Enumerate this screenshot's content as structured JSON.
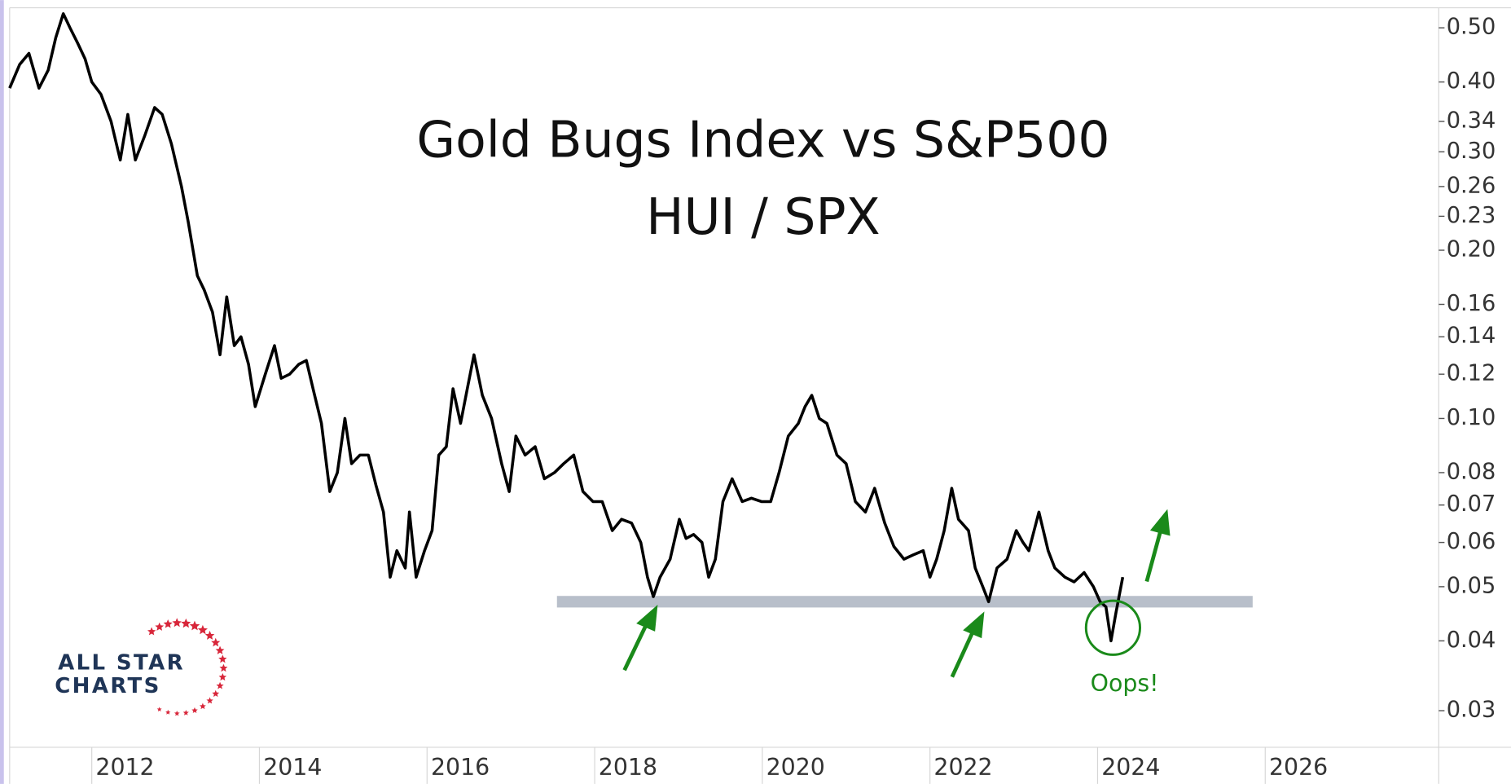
{
  "chart_data": {
    "type": "line",
    "title": "Gold Bugs Index vs S&P500",
    "subtitle": "HUI / SPX",
    "annotation": "Oops!",
    "logo": [
      "ALL STAR",
      "CHARTS"
    ],
    "log_y": true,
    "color": "#000000",
    "x": [
      2011.02,
      2011.14,
      2011.25,
      2011.37,
      2011.48,
      2011.57,
      2011.66,
      2011.74,
      2011.83,
      2011.92,
      2012.0,
      2012.11,
      2012.23,
      2012.34,
      2012.43,
      2012.52,
      2012.63,
      2012.75,
      2012.84,
      2012.95,
      2013.07,
      2013.15,
      2013.26,
      2013.34,
      2013.44,
      2013.53,
      2013.61,
      2013.7,
      2013.78,
      2013.87,
      2013.95,
      2014.07,
      2014.18,
      2014.26,
      2014.36,
      2014.47,
      2014.56,
      2014.64,
      2014.74,
      2014.84,
      2014.93,
      2015.02,
      2015.1,
      2015.2,
      2015.3,
      2015.39,
      2015.48,
      2015.56,
      2015.64,
      2015.74,
      2015.79,
      2015.87,
      2015.97,
      2016.06,
      2016.14,
      2016.23,
      2016.31,
      2016.4,
      2016.48,
      2016.56,
      2016.66,
      2016.77,
      2016.89,
      2016.98,
      2017.06,
      2017.17,
      2017.29,
      2017.4,
      2017.52,
      2017.63,
      2017.75,
      2017.86,
      2017.98,
      2018.09,
      2018.21,
      2018.32,
      2018.44,
      2018.55,
      2018.63,
      2018.7,
      2018.78,
      2018.9,
      2019.01,
      2019.09,
      2019.18,
      2019.28,
      2019.36,
      2019.44,
      2019.53,
      2019.64,
      2019.76,
      2019.87,
      2019.99,
      2020.1,
      2020.2,
      2020.31,
      2020.43,
      2020.51,
      2020.59,
      2020.68,
      2020.77,
      2020.89,
      2021.0,
      2021.11,
      2021.23,
      2021.34,
      2021.46,
      2021.57,
      2021.69,
      2021.8,
      2021.92,
      2022.0,
      2022.08,
      2022.17,
      2022.26,
      2022.34,
      2022.46,
      2022.54,
      2022.63,
      2022.7,
      2022.8,
      2022.92,
      2023.03,
      2023.11,
      2023.18,
      2023.3,
      2023.41,
      2023.49,
      2023.61,
      2023.72,
      2023.84,
      2023.95,
      2024.03,
      2024.1,
      2024.16,
      2024.22,
      2024.3
    ],
    "values": [
      0.39,
      0.43,
      0.45,
      0.39,
      0.42,
      0.48,
      0.53,
      0.5,
      0.47,
      0.44,
      0.4,
      0.38,
      0.34,
      0.29,
      0.35,
      0.29,
      0.32,
      0.36,
      0.35,
      0.31,
      0.26,
      0.225,
      0.18,
      0.17,
      0.155,
      0.13,
      0.165,
      0.135,
      0.14,
      0.125,
      0.105,
      0.12,
      0.135,
      0.118,
      0.12,
      0.125,
      0.127,
      0.113,
      0.098,
      0.074,
      0.08,
      0.1,
      0.083,
      0.086,
      0.086,
      0.076,
      0.068,
      0.052,
      0.058,
      0.054,
      0.068,
      0.052,
      0.058,
      0.063,
      0.086,
      0.089,
      0.113,
      0.098,
      0.113,
      0.13,
      0.11,
      0.1,
      0.083,
      0.074,
      0.093,
      0.086,
      0.089,
      0.078,
      0.08,
      0.083,
      0.086,
      0.074,
      0.071,
      0.071,
      0.063,
      0.066,
      0.065,
      0.06,
      0.052,
      0.048,
      0.052,
      0.056,
      0.066,
      0.061,
      0.062,
      0.06,
      0.052,
      0.056,
      0.071,
      0.078,
      0.071,
      0.072,
      0.071,
      0.071,
      0.08,
      0.093,
      0.098,
      0.105,
      0.11,
      0.1,
      0.098,
      0.086,
      0.083,
      0.071,
      0.068,
      0.075,
      0.065,
      0.059,
      0.056,
      0.057,
      0.058,
      0.052,
      0.056,
      0.063,
      0.075,
      0.066,
      0.063,
      0.054,
      0.05,
      0.047,
      0.054,
      0.056,
      0.063,
      0.06,
      0.058,
      0.068,
      0.058,
      0.054,
      0.052,
      0.051,
      0.053,
      0.05,
      0.047,
      0.046,
      0.04,
      0.045,
      0.052
    ],
    "band": {
      "value": 0.047,
      "x": [
        2017.55,
        2025.85
      ],
      "color": "#b8bfca"
    },
    "xlim": [
      2011.02,
      2028.07
    ],
    "xticks": [
      2012,
      2014,
      2016,
      2018,
      2020,
      2022,
      2024,
      2026
    ],
    "ylim": [
      0.0258,
      0.543
    ],
    "yticks": [
      0.03,
      0.04,
      0.05,
      0.06,
      0.07,
      0.08,
      {
        "value": 0.1,
        "label": "0.10"
      },
      0.12,
      0.14,
      0.16,
      {
        "value": 0.2,
        "label": "0.20"
      },
      0.23,
      0.26,
      {
        "value": 0.3,
        "label": "0.30"
      },
      0.34,
      {
        "value": 0.4,
        "label": "0.40"
      },
      {
        "value": 0.5,
        "label": "0.50"
      }
    ]
  }
}
